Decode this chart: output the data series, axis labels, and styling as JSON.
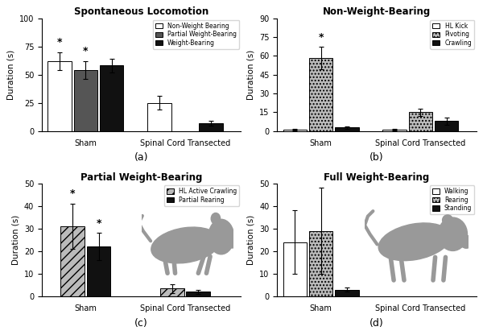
{
  "panel_a": {
    "title": "Spontaneous Locomotion",
    "ylabel": "Duration (s)",
    "xlabel_label": "(a)",
    "ylim": [
      0,
      100
    ],
    "yticks": [
      0,
      25,
      50,
      75,
      100
    ],
    "groups": [
      "Sham",
      "Spinal Cord Transected"
    ],
    "bars": [
      {
        "label": "Non-Weight Bearing",
        "color": "white",
        "hatch": null,
        "values": [
          62,
          25
        ],
        "errors": [
          8,
          6
        ]
      },
      {
        "label": "Partial Weight-Bearing",
        "color": "#555555",
        "hatch": null,
        "values": [
          54,
          0
        ],
        "errors": [
          8,
          0
        ]
      },
      {
        "label": "Weight-Bearing",
        "color": "#111111",
        "hatch": null,
        "values": [
          58,
          7
        ],
        "errors": [
          6,
          2
        ]
      }
    ],
    "sig_bars": [
      0,
      1
    ],
    "legend_loc": "upper right"
  },
  "panel_b": {
    "title": "Non-Weight-Bearing",
    "ylabel": "Duration (s)",
    "xlabel_label": "(b)",
    "ylim": [
      0,
      90
    ],
    "yticks": [
      0,
      15,
      30,
      45,
      60,
      75,
      90
    ],
    "groups": [
      "Sham",
      "Spinal Cord Transected"
    ],
    "bars": [
      {
        "label": "HL Kick",
        "color": "white",
        "hatch": null,
        "values": [
          1,
          1
        ],
        "errors": [
          0.5,
          0.5
        ]
      },
      {
        "label": "Pivoting",
        "color": "#bbbbbb",
        "hatch": "....",
        "values": [
          58,
          15
        ],
        "errors": [
          9,
          3
        ]
      },
      {
        "label": "Crawling",
        "color": "#111111",
        "hatch": null,
        "values": [
          3,
          8
        ],
        "errors": [
          1,
          3
        ]
      }
    ],
    "sig_bars": [
      1
    ],
    "legend_loc": "upper right"
  },
  "panel_c": {
    "title": "Partial Weight-Bearing",
    "ylabel": "Duration (s)",
    "xlabel_label": "(c)",
    "ylim": [
      0,
      50
    ],
    "yticks": [
      0,
      10,
      20,
      30,
      40,
      50
    ],
    "groups": [
      "Sham",
      "Spinal Cord Transected"
    ],
    "bars": [
      {
        "label": "HL Active Crawling",
        "color": "#bbbbbb",
        "hatch": "///",
        "values": [
          31,
          3.5
        ],
        "errors": [
          10,
          2
        ]
      },
      {
        "label": "Partial Rearing",
        "color": "#111111",
        "hatch": null,
        "values": [
          22,
          2
        ],
        "errors": [
          6,
          1
        ]
      }
    ],
    "sig_bars": [
      0,
      1
    ],
    "legend_loc": "upper right"
  },
  "panel_d": {
    "title": "Full Weight-Bearing",
    "ylabel": "Duration (s)",
    "xlabel_label": "(d)",
    "ylim": [
      0,
      50
    ],
    "yticks": [
      0,
      10,
      20,
      30,
      40,
      50
    ],
    "groups": [
      "Sham",
      "Spinal Cord Transected"
    ],
    "bars": [
      {
        "label": "Walking",
        "color": "white",
        "hatch": null,
        "values": [
          24,
          0
        ],
        "errors": [
          14,
          0
        ]
      },
      {
        "label": "Rearing",
        "color": "#bbbbbb",
        "hatch": "....",
        "values": [
          29,
          0
        ],
        "errors": [
          19,
          0
        ]
      },
      {
        "label": "Standing",
        "color": "#111111",
        "hatch": null,
        "values": [
          3,
          0
        ],
        "errors": [
          1,
          0
        ]
      }
    ],
    "sig_bars": [],
    "legend_loc": "upper right"
  },
  "animal_color": "#999999"
}
